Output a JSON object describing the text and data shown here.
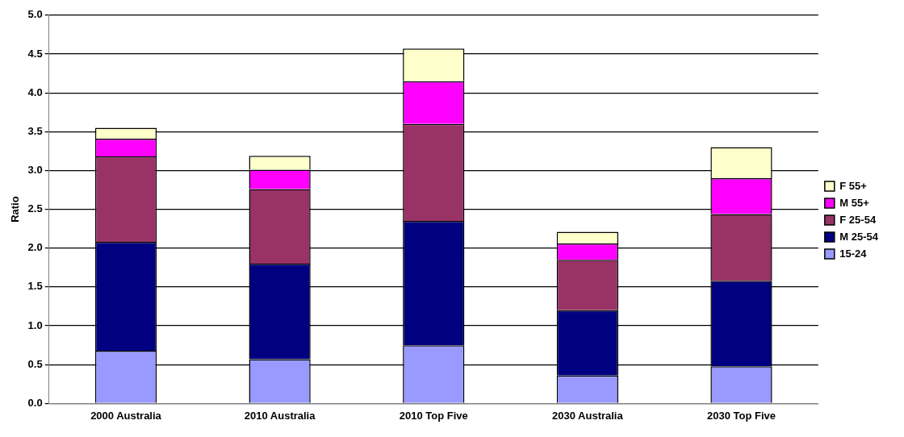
{
  "chart_data": {
    "type": "bar",
    "ylabel": "Ratio",
    "categories": [
      "2000 Australia",
      "2010 Australia",
      "2010 Top Five",
      "2030 Australia",
      "2030 Top Five"
    ],
    "stacked": true,
    "ylim": [
      0,
      5
    ],
    "yticks": [
      {
        "value": 0,
        "label": "0.0"
      },
      {
        "value": 0.5,
        "label": "0.5"
      },
      {
        "value": 1,
        "label": "1.0"
      },
      {
        "value": 1.5,
        "label": "1.5"
      },
      {
        "value": 2,
        "label": "2.0"
      },
      {
        "value": 2.5,
        "label": "2.5"
      },
      {
        "value": 3,
        "label": "3.0"
      },
      {
        "value": 3.5,
        "label": "3.5"
      },
      {
        "value": 4,
        "label": "4.0"
      },
      {
        "value": 4.5,
        "label": "4.5"
      },
      {
        "value": 5,
        "label": "5.0"
      }
    ],
    "grid": "y",
    "legend": "right",
    "series": [
      {
        "name": "15-24",
        "color": "#9999ff",
        "values": [
          0.68,
          0.57,
          0.75,
          0.36,
          0.48
        ]
      },
      {
        "name": "M 25-54",
        "color": "#000080",
        "values": [
          1.4,
          1.23,
          1.6,
          0.84,
          1.1
        ]
      },
      {
        "name": "F 25-54",
        "color": "#993366",
        "values": [
          1.1,
          0.96,
          1.25,
          0.65,
          0.86
        ]
      },
      {
        "name": "M 55+",
        "color": "#ff00ff",
        "values": [
          0.23,
          0.25,
          0.55,
          0.21,
          0.46
        ]
      },
      {
        "name": "F 55+",
        "color": "#ffffcc",
        "values": [
          0.14,
          0.18,
          0.42,
          0.15,
          0.4
        ]
      }
    ]
  }
}
